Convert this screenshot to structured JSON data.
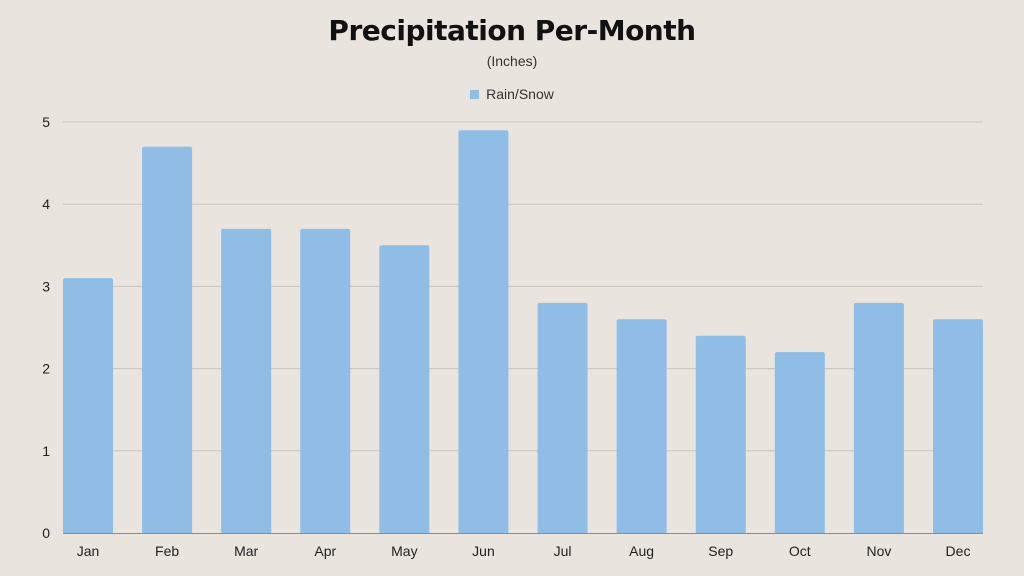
{
  "chart_data": {
    "type": "bar",
    "title": "Precipitation Per-Month",
    "subtitle": "(Inches)",
    "categories": [
      "Jan",
      "Feb",
      "Mar",
      "Apr",
      "May",
      "Jun",
      "Jul",
      "Aug",
      "Sep",
      "Oct",
      "Nov",
      "Dec"
    ],
    "series": [
      {
        "name": "Rain/Snow",
        "values": [
          3.1,
          4.7,
          3.7,
          3.7,
          3.5,
          4.9,
          2.8,
          2.6,
          2.4,
          2.2,
          2.8,
          2.6
        ]
      }
    ],
    "y_ticks": [
      "0",
      "1",
      "2",
      "3",
      "4",
      "5"
    ],
    "ylim": [
      0,
      5
    ],
    "grid": true,
    "legend_position": "top-center",
    "colors": {
      "bar": "#90bde6",
      "grid": "#c9c3bc",
      "axis": "#8c8c8c",
      "background": "#e9e4de"
    }
  }
}
